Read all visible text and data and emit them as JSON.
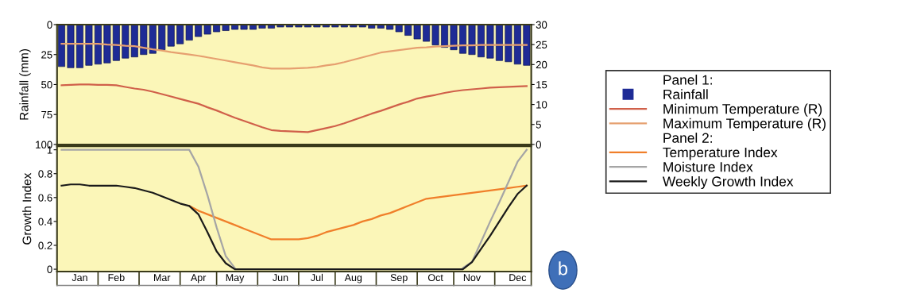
{
  "chart_data": [
    {
      "type": "bar",
      "legend_title": "Panel 1:",
      "legend": "right",
      "ylabel": "Rainfall (mm)",
      "ylim": [
        100,
        0
      ],
      "yticks": [
        0,
        25,
        50,
        75,
        100
      ],
      "y2lim": [
        0,
        30
      ],
      "y2ticks": [
        0,
        5,
        10,
        15,
        20,
        25,
        30
      ],
      "tick_labels": "y",
      "categories": [
        null,
        null,
        null,
        null,
        null,
        null,
        null,
        null,
        null,
        null,
        null,
        null,
        null,
        null,
        null,
        null,
        null,
        null,
        null,
        null,
        null,
        null,
        null,
        null,
        null,
        null,
        null,
        null,
        null,
        null,
        null,
        null,
        null,
        null,
        null,
        null,
        null,
        null,
        null,
        null,
        null,
        null,
        null,
        null,
        null,
        null,
        null,
        null,
        null,
        null,
        null,
        null
      ],
      "series": [
        {
          "name": "Rainfall",
          "type": "bar",
          "color": "#1e2b96",
          "values": [
            35,
            36,
            36,
            34,
            33,
            32,
            30,
            28,
            27,
            25,
            24,
            21,
            18,
            16,
            13,
            10,
            8,
            6,
            5,
            4,
            4,
            4,
            3,
            3,
            2,
            2,
            2,
            2,
            2,
            2,
            2,
            2,
            2,
            2,
            3,
            3,
            4,
            6,
            9,
            12,
            14,
            17,
            19,
            21,
            24,
            25,
            27,
            28,
            30,
            31,
            33,
            34
          ]
        },
        {
          "name": "Minimum Temperature (R)",
          "type": "line",
          "axis": "y2",
          "color": "#d0604a",
          "values": [
            14.8,
            14.9,
            15.0,
            15.0,
            14.9,
            14.9,
            14.8,
            14.4,
            14.0,
            13.7,
            13.2,
            12.6,
            12.0,
            11.4,
            10.8,
            10.2,
            9.3,
            8.5,
            7.6,
            6.7,
            5.9,
            5.1,
            4.3,
            3.6,
            3.4,
            3.3,
            3.2,
            3.1,
            3.6,
            4.1,
            4.6,
            5.3,
            6.1,
            6.9,
            7.7,
            8.4,
            9.2,
            10.0,
            10.7,
            11.5,
            12.0,
            12.4,
            12.9,
            13.3,
            13.6,
            13.8,
            14.0,
            14.2,
            14.3,
            14.4,
            14.5,
            14.6
          ]
        },
        {
          "name": "Maximum Temperature (R)",
          "type": "line",
          "axis": "y2",
          "color": "#e6a070",
          "values": [
            25.2,
            25.2,
            25.2,
            25.2,
            25.2,
            25.0,
            24.9,
            24.7,
            24.6,
            24.2,
            23.8,
            23.5,
            23.1,
            22.8,
            22.5,
            22.2,
            21.8,
            21.4,
            21.0,
            20.6,
            20.2,
            19.8,
            19.3,
            19.0,
            19.0,
            19.0,
            19.1,
            19.2,
            19.4,
            19.8,
            20.1,
            20.6,
            21.2,
            21.8,
            22.4,
            23.0,
            23.3,
            23.6,
            23.9,
            24.2,
            24.3,
            24.5,
            24.6,
            24.7,
            24.8,
            24.8,
            24.9,
            24.9,
            24.9,
            24.9,
            24.9,
            24.9
          ]
        }
      ]
    },
    {
      "type": "line",
      "legend_title": "Panel 2:",
      "legend": "right",
      "ylabel": "Growth Index",
      "ylim": [
        -0.02,
        1.03
      ],
      "yticks": [
        0,
        0.2,
        0.4,
        0.6,
        0.8,
        1
      ],
      "categories": [
        null,
        null,
        "Jan",
        null,
        null,
        null,
        "Feb",
        null,
        null,
        null,
        null,
        "Mar",
        null,
        null,
        null,
        "Apr",
        null,
        null,
        null,
        "May",
        null,
        null,
        null,
        null,
        "Jun",
        null,
        null,
        null,
        "Jul",
        null,
        null,
        null,
        "Aug",
        null,
        null,
        null,
        null,
        "Sep",
        null,
        null,
        null,
        "Oct",
        null,
        null,
        null,
        "Nov",
        null,
        null,
        null,
        null,
        "Dec",
        null
      ],
      "annotations": [
        "b"
      ],
      "series": [
        {
          "name": "Temperature Index",
          "color": "#f07f2a",
          "values": [
            null,
            null,
            null,
            null,
            null,
            null,
            null,
            null,
            null,
            null,
            null,
            null,
            null,
            null,
            0.53,
            0.49,
            0.46,
            0.43,
            0.4,
            0.37,
            0.34,
            0.31,
            0.28,
            0.25,
            0.25,
            0.25,
            0.25,
            0.26,
            0.28,
            0.31,
            0.33,
            0.35,
            0.37,
            0.4,
            0.42,
            0.45,
            0.47,
            0.5,
            0.53,
            0.56,
            0.59,
            0.6,
            0.61,
            0.62,
            0.63,
            0.64,
            0.65,
            0.66,
            0.67,
            0.68,
            0.69,
            0.7
          ]
        },
        {
          "name": "Moisture Index",
          "color": "#a5a5a5",
          "values": [
            1,
            1,
            1,
            1,
            1,
            1,
            1,
            1,
            1,
            1,
            1,
            1,
            1,
            1,
            1,
            0.86,
            0.62,
            0.35,
            0.11,
            0.01,
            null,
            null,
            null,
            null,
            null,
            null,
            null,
            null,
            null,
            null,
            null,
            null,
            null,
            null,
            null,
            null,
            null,
            null,
            null,
            null,
            null,
            null,
            null,
            null,
            0.01,
            0.06,
            0.23,
            0.4,
            0.56,
            0.73,
            0.9,
            1
          ]
        },
        {
          "name": "Weekly Growth Index",
          "color": "#1a1a1a",
          "values": [
            0.7,
            0.71,
            0.71,
            0.7,
            0.7,
            0.7,
            0.7,
            0.69,
            0.68,
            0.66,
            0.64,
            0.61,
            0.58,
            0.55,
            0.53,
            0.46,
            0.31,
            0.15,
            0.05,
            0,
            0,
            0,
            0,
            0,
            0,
            0,
            0,
            0,
            0,
            0,
            0,
            0,
            0,
            0,
            0,
            0,
            0,
            0,
            0,
            0,
            0,
            0,
            0,
            0,
            0,
            0.06,
            0.17,
            0.28,
            0.4,
            0.52,
            0.63,
            0.7
          ]
        }
      ]
    }
  ]
}
